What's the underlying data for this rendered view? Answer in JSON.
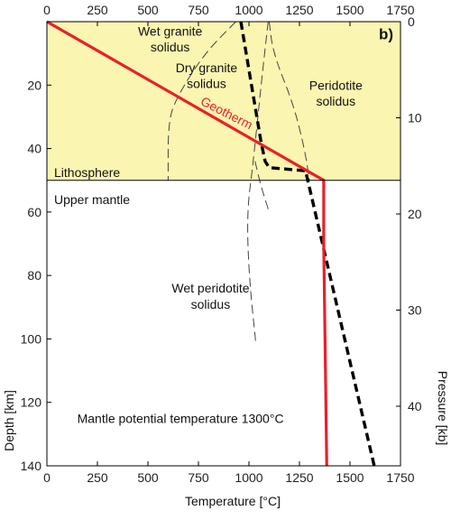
{
  "chart_data": {
    "type": "line",
    "panel_label": "b)",
    "xlabel": "Temperature [°C]",
    "ylabel_left": "Depth [km]",
    "ylabel_right": "Pressure [kb]",
    "xlim": [
      0,
      1750
    ],
    "depth_lim": [
      0,
      140
    ],
    "pressure_lim": [
      0,
      46.2
    ],
    "x_ticks": [
      "0",
      "250",
      "500",
      "750",
      "1000",
      "1250",
      "1500",
      "1750"
    ],
    "x_tick_values": [
      0,
      250,
      500,
      750,
      1000,
      1250,
      1500,
      1750
    ],
    "depth_ticks": [
      "20",
      "40",
      "60",
      "80",
      "100",
      "120",
      "140"
    ],
    "depth_tick_values": [
      20,
      40,
      60,
      80,
      100,
      120,
      140
    ],
    "pressure_ticks": [
      "0",
      "10",
      "20",
      "30",
      "40"
    ],
    "pressure_tick_values": [
      0,
      10,
      20,
      30,
      40
    ],
    "lithosphere_base_depth": 50,
    "colors": {
      "lithosphere_fill": "#faf5b0",
      "geotherm": "#e8202a",
      "solidus": "#000000",
      "thin_solidus": "#444444"
    },
    "regions": [
      {
        "name": "Lithosphere",
        "label": "Lithosphere",
        "depth_range": [
          0,
          50
        ]
      },
      {
        "name": "Upper mantle",
        "label": "Upper mantle",
        "depth_range": [
          50,
          140
        ]
      }
    ],
    "series": [
      {
        "name": "Geotherm",
        "style": "solid-red",
        "points": [
          [
            0,
            0
          ],
          [
            1370,
            50
          ],
          [
            1370,
            70
          ],
          [
            1385,
            140
          ]
        ]
      },
      {
        "name": "Dry granite solidus",
        "style": "thick-dashed",
        "points": [
          [
            960,
            0
          ],
          [
            1060,
            38
          ],
          [
            1080,
            44
          ],
          [
            1100,
            46
          ],
          [
            1280,
            47
          ],
          [
            1620,
            140
          ]
        ]
      },
      {
        "name": "Wet granite solidus",
        "style": "thin-dashed",
        "points": [
          [
            935,
            0
          ],
          [
            780,
            10
          ],
          [
            640,
            24
          ],
          [
            600,
            32
          ],
          [
            600,
            50
          ]
        ]
      },
      {
        "name": "Peridotite solidus",
        "style": "thin-dashed",
        "points": [
          [
            1100,
            0
          ],
          [
            1120,
            10
          ],
          [
            1220,
            26
          ],
          [
            1275,
            40
          ],
          [
            1300,
            50
          ]
        ]
      },
      {
        "name": "Wet peridotite solidus",
        "style": "thin-dashed",
        "points": [
          [
            1095,
            0
          ],
          [
            1060,
            20
          ],
          [
            1020,
            45
          ],
          [
            990,
            60
          ],
          [
            1000,
            80
          ],
          [
            1035,
            102
          ]
        ]
      },
      {
        "name": "Wet granite solidus tail",
        "style": "thin-dashed",
        "points": [
          [
            1030,
            44
          ],
          [
            1060,
            52
          ],
          [
            1100,
            60
          ]
        ]
      }
    ],
    "annotations": [
      {
        "text": "Wet granite",
        "x": 610,
        "depth": 3
      },
      {
        "text": "solidus",
        "x": 610,
        "depth": 8
      },
      {
        "text": "Dry granite",
        "x": 790,
        "depth": 14.5
      },
      {
        "text": "solidus",
        "x": 790,
        "depth": 19.5
      },
      {
        "text": "Peridotite",
        "x": 1430,
        "depth": 20
      },
      {
        "text": "solidus",
        "x": 1430,
        "depth": 25
      },
      {
        "text": "Wet peridotite",
        "x": 810,
        "depth": 84
      },
      {
        "text": "solidus",
        "x": 810,
        "depth": 89
      },
      {
        "text": "Mantle potential temperature 1300°C",
        "x": 150,
        "depth": 125
      }
    ],
    "geotherm_label": {
      "text": "Geotherm",
      "x": 880,
      "depth": 30,
      "angle_deg": 27
    }
  }
}
